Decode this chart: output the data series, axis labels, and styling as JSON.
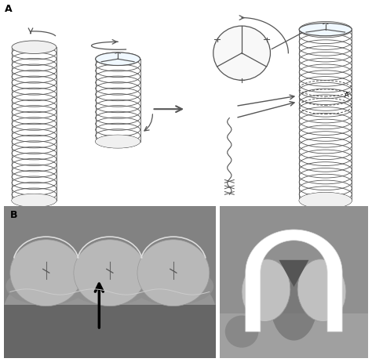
{
  "figure_width": 4.74,
  "figure_height": 4.62,
  "dpi": 100,
  "bg_color": "#ffffff",
  "panel_a_label": "A",
  "panel_b_label": "B",
  "line_color": "#444444",
  "arrow_color": "#333333",
  "cylinder_fill": "#f0f0f0",
  "cylinder_line": "#555555",
  "photo_left_bg": "#888888",
  "photo_right_bg": "#909090",
  "label_fontsize": 9,
  "label_fontweight": "bold"
}
